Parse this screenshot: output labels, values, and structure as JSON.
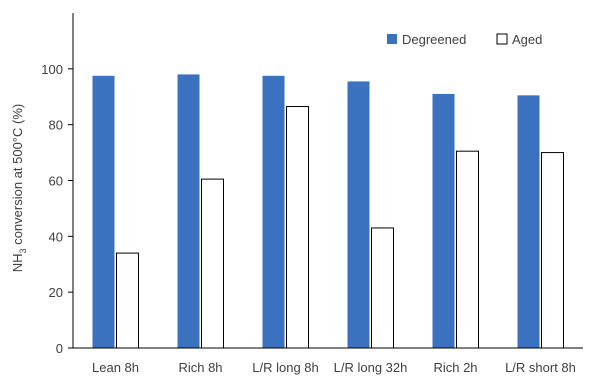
{
  "chart_data": {
    "type": "bar",
    "title": "",
    "xlabel": "",
    "ylabel": {
      "prefix": "NH",
      "subscript": "3",
      "suffix": " conversion at 500°C (%)"
    },
    "ylim": [
      0,
      120
    ],
    "yticks": [
      0,
      20,
      40,
      60,
      80,
      100
    ],
    "grid": false,
    "legend_position": "top-right",
    "categories": [
      "Lean 8h",
      "Rich 8h",
      "L/R long 8h",
      "L/R long 32h",
      "Rich 2h",
      "L/R short 8h"
    ],
    "series": [
      {
        "name": "Degreened",
        "color": "#3a72bf",
        "style": "filled",
        "values": [
          97.5,
          98,
          97.5,
          95.5,
          91,
          90.5
        ]
      },
      {
        "name": "Aged",
        "color": "#ffffff",
        "stroke": "#000000",
        "style": "outlined",
        "values": [
          34,
          60.5,
          86.5,
          43,
          70.5,
          70
        ]
      }
    ]
  }
}
